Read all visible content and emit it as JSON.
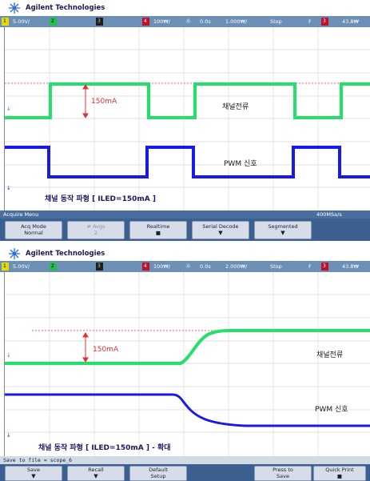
{
  "panel_top": {
    "brand": "Agilent Technologies",
    "status": {
      "ch1_scale": "5.00V/",
      "ch1_num": "1",
      "ch2_num": "2",
      "ch3_num": "3",
      "ch4_num": "4",
      "time_scale": "100₩/",
      "delay": "0.0s",
      "time_div": "1.000₩/",
      "mode": "Stop",
      "trig_f": "F",
      "trig_ch": "3",
      "trig_level": "43.8₩"
    },
    "annotations": {
      "current": "150mA",
      "channel_current": "채널전류",
      "pwm_signal": "PWM 신호",
      "caption": "채널 동작 파형 [ ILED=150mA ]"
    },
    "menu_title": "Acquire Menu",
    "sample_rate": "400MSa/s",
    "softkeys": [
      {
        "line1": "Acq Mode",
        "line2": "Normal"
      },
      {
        "line1": "# Avgs",
        "line2": "2"
      },
      {
        "line1": "Realtime",
        "line2": "■"
      },
      {
        "line1": "Serial Decode",
        "line2": "▼"
      },
      {
        "line1": "Segmented",
        "line2": "▼"
      }
    ]
  },
  "panel_bottom": {
    "brand": "Agilent Technologies",
    "status": {
      "ch1_scale": "5.00V/",
      "ch1_num": "1",
      "ch2_num": "2",
      "ch3_num": "3",
      "ch4_num": "4",
      "time_scale": "100₩/",
      "delay": "0.0s",
      "time_div": "2.000₩/",
      "mode": "Stop",
      "trig_f": "F",
      "trig_ch": "3",
      "trig_level": "43.8₩"
    },
    "annotations": {
      "current": "150mA",
      "channel_current": "채널전류",
      "pwm_signal": "PWM 신호",
      "caption": "채널 동작 파형 [ ILED=150mA ] - 확대"
    },
    "save_label": "Save to file = scope_6",
    "softkeys": [
      {
        "line1": "Save",
        "line2": "▼"
      },
      {
        "line1": "Recall",
        "line2": "▼"
      },
      {
        "line1": "Default",
        "line2": "Setup"
      },
      {
        "line1": "Press to",
        "line2": "Save"
      },
      {
        "line1": "Quick Print",
        "line2": "■"
      }
    ]
  },
  "colors": {
    "green_trace": "#22e06a",
    "blue_trace": "#1a1ae8",
    "ref_line": "#e03030",
    "status_bg": "#6c8fb5",
    "softkey_bg": "#3b5f8f"
  }
}
